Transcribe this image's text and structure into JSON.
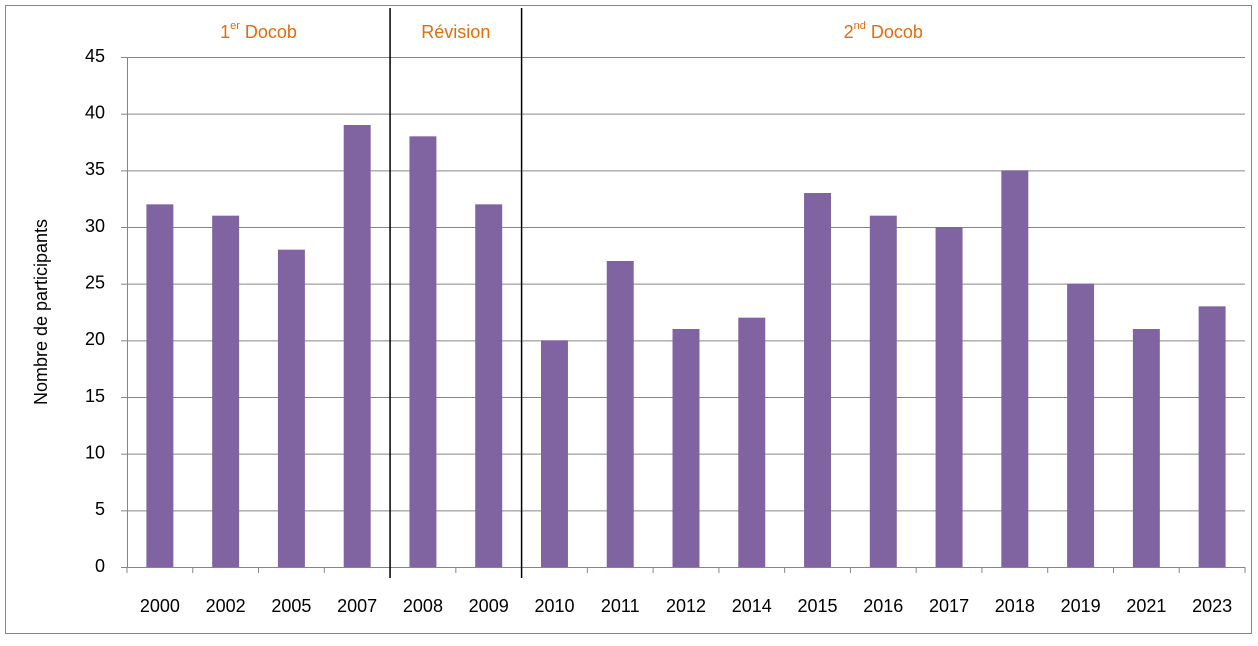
{
  "chart_data": {
    "type": "bar",
    "y_label": "Nombre de participants",
    "categories": [
      "2000",
      "2002",
      "2005",
      "2007",
      "2008",
      "2009",
      "2010",
      "2011",
      "2012",
      "2014",
      "2015",
      "2016",
      "2017",
      "2018",
      "2019",
      "2021",
      "2023"
    ],
    "values": [
      32,
      31,
      28,
      39,
      38,
      32,
      20,
      27,
      21,
      22,
      33,
      31,
      30,
      35,
      25,
      21,
      23
    ],
    "color": "#8064a2",
    "ylim": [
      0,
      45
    ],
    "yticks": [
      0,
      5,
      10,
      15,
      20,
      25,
      30,
      35,
      40,
      45
    ],
    "grid": true,
    "sections": [
      {
        "text": "1",
        "sup": "er",
        "tail": " Docob",
        "span": [
          "2000",
          "2007"
        ]
      },
      {
        "text": "Révision",
        "span": [
          "2008",
          "2009"
        ]
      },
      {
        "text": "2",
        "sup": "nd",
        "tail": " Docob",
        "span": [
          "2010",
          "2023"
        ]
      }
    ],
    "section_color": "#e46c0a"
  }
}
